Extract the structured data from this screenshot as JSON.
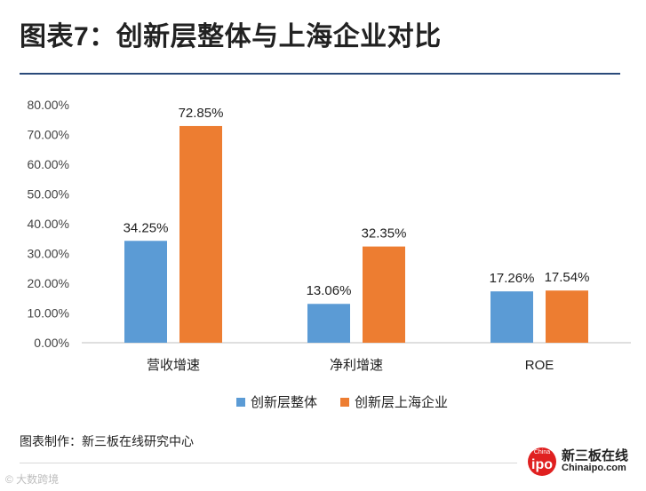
{
  "title": "图表7：创新层整体与上海企业对比",
  "source": "图表制作：新三板在线研究中心",
  "colors": {
    "series1": "#5b9bd5",
    "series2": "#ed7d31",
    "axis": "#bfbfbf",
    "rule": "#2a4a7a"
  },
  "chart_data": {
    "type": "bar",
    "categories": [
      "营收增速",
      "净利增速",
      "ROE"
    ],
    "series": [
      {
        "name": "创新层整体",
        "values": [
          34.25,
          13.06,
          17.26
        ],
        "labels": [
          "34.25%",
          "13.06%",
          "17.26%"
        ]
      },
      {
        "name": "创新层上海企业",
        "values": [
          72.85,
          32.35,
          17.54
        ],
        "labels": [
          "72.85%",
          "32.35%",
          "17.54%"
        ]
      }
    ],
    "ylim": [
      0,
      80
    ],
    "yticks": [
      "0.00%",
      "10.00%",
      "20.00%",
      "30.00%",
      "40.00%",
      "50.00%",
      "60.00%",
      "70.00%",
      "80.00%"
    ],
    "grid": false,
    "legend_position": "bottom"
  },
  "logo": {
    "badge_small": "China",
    "badge_big": "ipo",
    "name": "新三板在线",
    "domain": "Chinaipo.com"
  },
  "corner_watermark": "© 大数跨境"
}
